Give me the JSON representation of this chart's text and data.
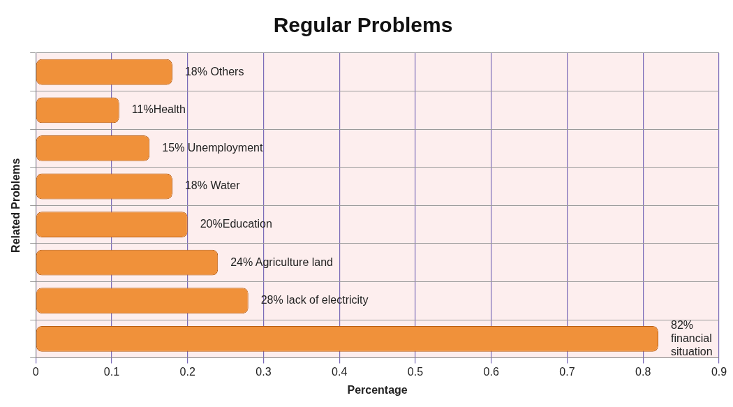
{
  "chart_data": {
    "type": "bar",
    "orientation": "horizontal",
    "title": "Regular Problems",
    "xlabel": "Percentage",
    "ylabel": "Related Problems",
    "categories": [
      null,
      null,
      null,
      null,
      null,
      null,
      null,
      null
    ],
    "values": [
      0.18,
      0.11,
      0.15,
      0.18,
      0.2,
      0.24,
      0.28,
      0.82
    ],
    "value_labels": [
      "18% Others",
      "11%Health",
      "15% Unemployment",
      "18% Water",
      "20%Education",
      "24% Agriculture land",
      "28% lack of electricity",
      "82% financial situation"
    ],
    "color": "#f0913a",
    "xlim": [
      0,
      0.9
    ],
    "xticks": [
      0,
      0.1,
      0.2,
      0.3,
      0.4,
      0.5,
      0.6,
      0.7,
      0.8,
      0.9
    ],
    "grid": true,
    "legend": false
  }
}
